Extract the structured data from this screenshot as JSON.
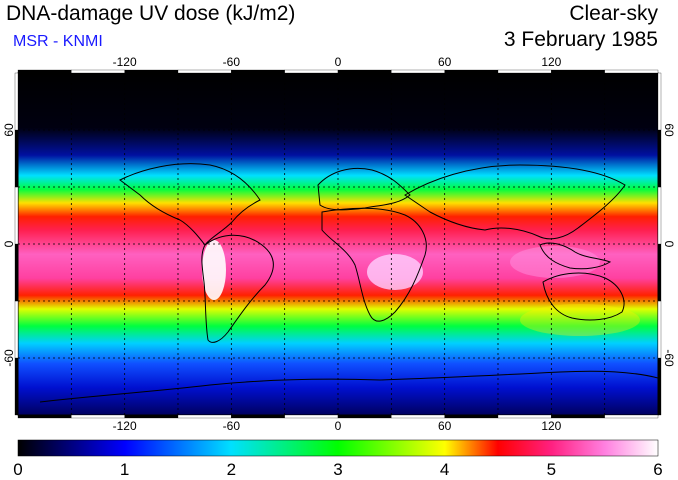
{
  "header": {
    "title": "DNA-damage UV dose (kJ/m2)",
    "organization": "MSR - KNMI",
    "condition": "Clear-sky",
    "date": "3 February 1985"
  },
  "map": {
    "projection": "equirectangular",
    "lon_range": [
      -180,
      180
    ],
    "lat_range": [
      -90,
      90
    ],
    "lon_grid": [
      -150,
      -120,
      -90,
      -60,
      -30,
      0,
      30,
      60,
      90,
      120,
      150
    ],
    "lat_grid": [
      -60,
      -30,
      0,
      30,
      60
    ],
    "lon_tick_labels": [
      {
        "value": -120,
        "label": "-120"
      },
      {
        "value": -60,
        "label": "-60"
      },
      {
        "value": 0,
        "label": "0"
      },
      {
        "value": 60,
        "label": "60"
      },
      {
        "value": 120,
        "label": "120"
      }
    ],
    "lat_tick_labels": [
      {
        "value": 60,
        "label": "60"
      },
      {
        "value": 0,
        "label": "0"
      },
      {
        "value": -60,
        "label": "-60"
      }
    ],
    "gridlines": "dotted"
  },
  "colorbar": {
    "min": 0,
    "max": 6,
    "tick_labels": [
      "0",
      "1",
      "2",
      "3",
      "4",
      "5",
      "6"
    ],
    "colors": [
      "#000000",
      "#0000ff",
      "#00e0ff",
      "#00ff00",
      "#ffff00",
      "#ff0000",
      "#ff40c0",
      "#ffffff"
    ]
  },
  "colors": {
    "text": "#000000",
    "organization": "#1a1aff"
  }
}
